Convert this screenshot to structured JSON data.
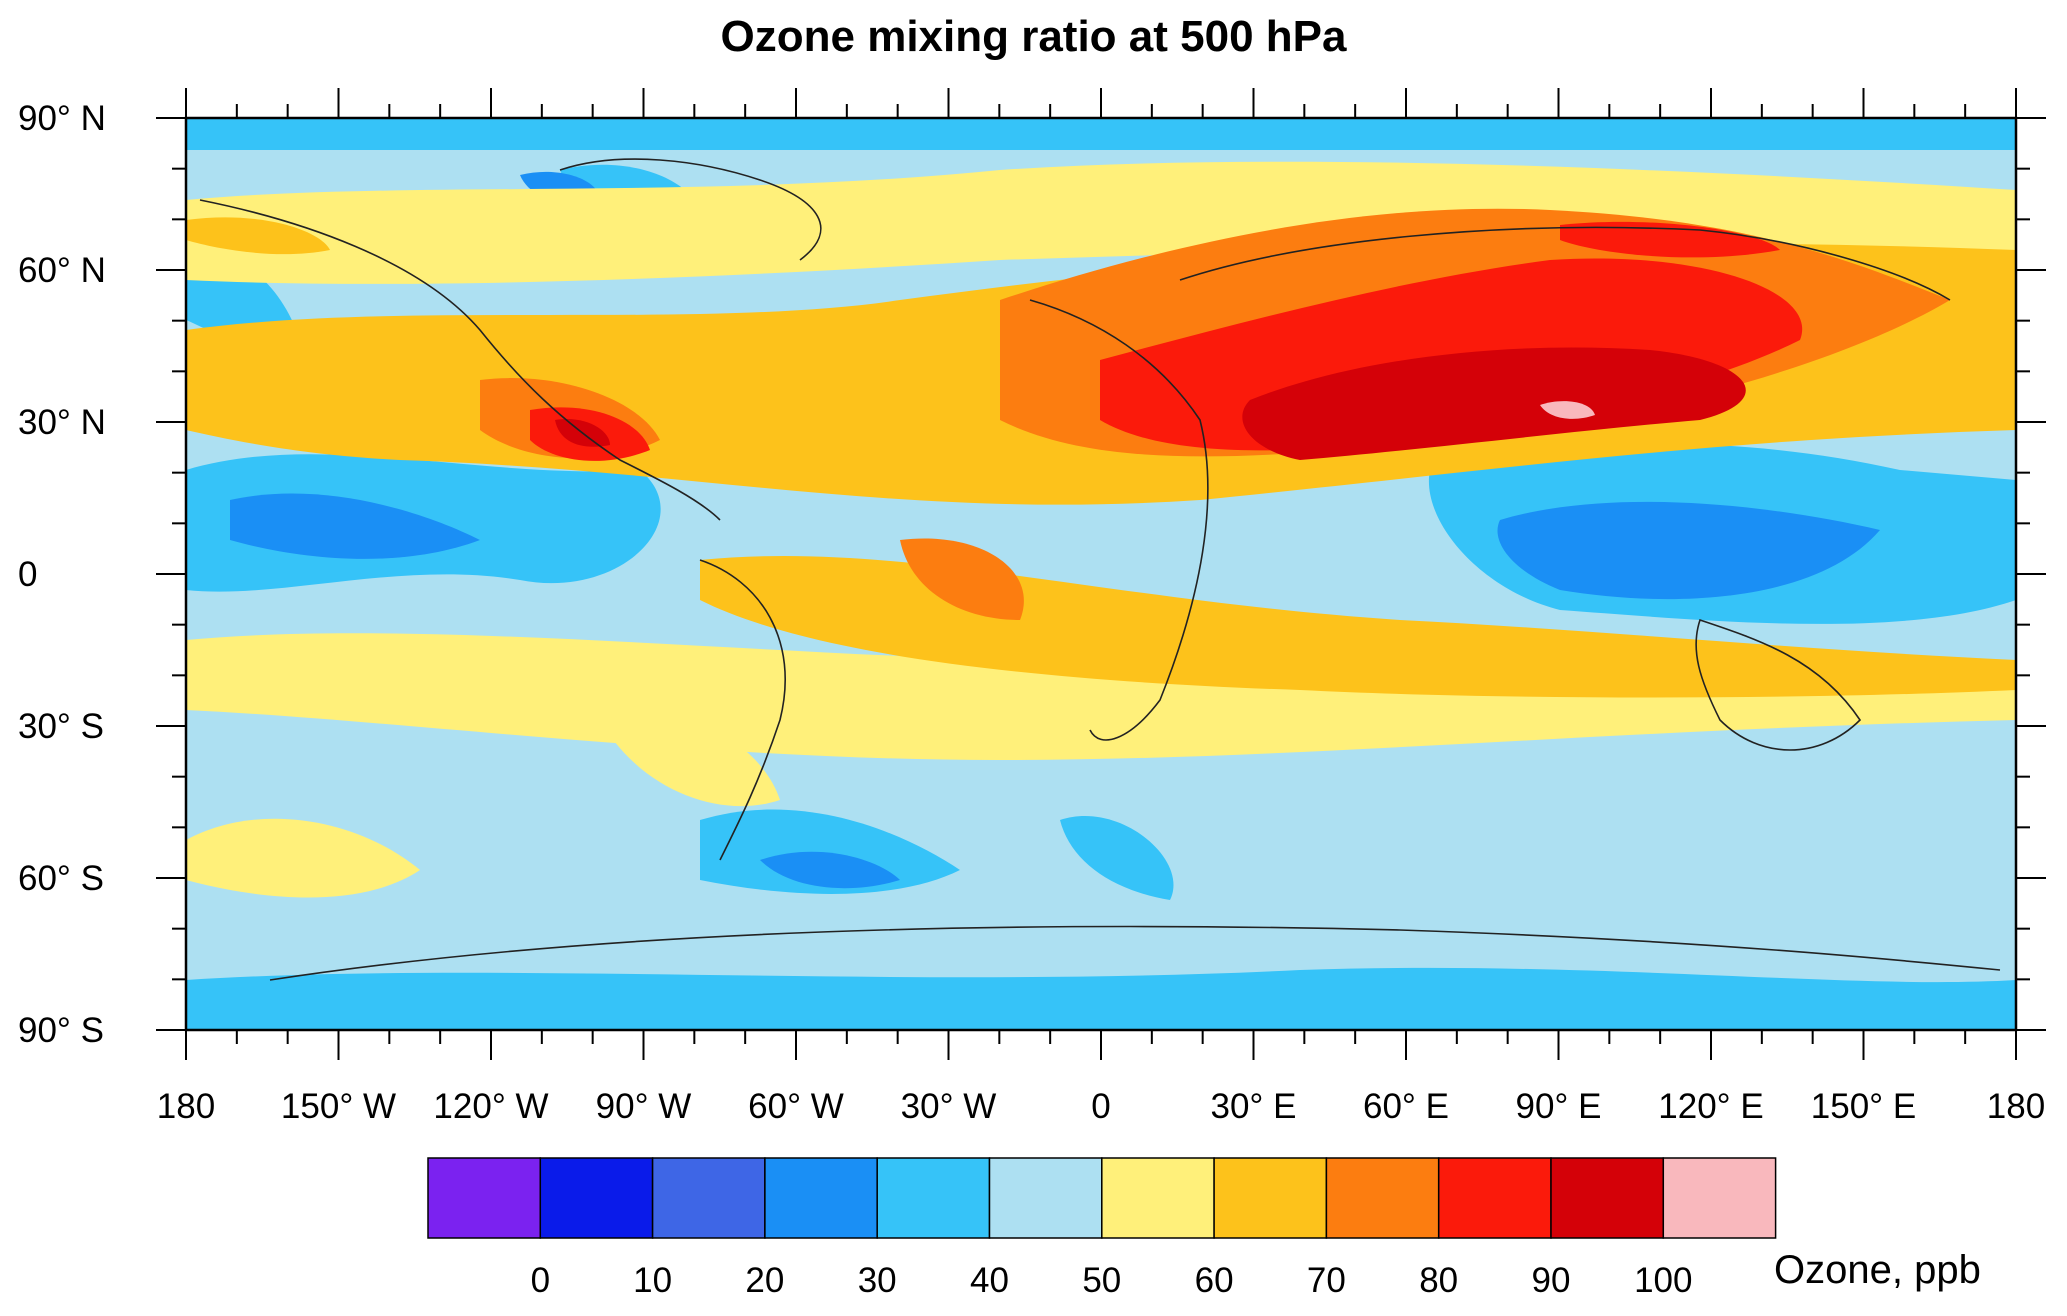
{
  "title": "Ozone mixing ratio at 500 hPa",
  "axes": {
    "lat_labels": [
      "90° N",
      "60° N",
      "30° N",
      "0",
      "30° S",
      "60° S",
      "90° S"
    ],
    "lat_values": [
      90,
      60,
      30,
      0,
      -30,
      -60,
      -90
    ],
    "lon_labels": [
      "180",
      "150° W",
      "120° W",
      "90° W",
      "60° W",
      "30° W",
      "0",
      "30° E",
      "60° E",
      "90° E",
      "120° E",
      "150° E",
      "180"
    ],
    "lon_values": [
      -180,
      -150,
      -120,
      -90,
      -60,
      -30,
      0,
      30,
      60,
      90,
      120,
      150,
      180
    ],
    "lon_range": [
      -180,
      180
    ],
    "lat_range": [
      -90,
      90
    ]
  },
  "colorbar": {
    "title": "Ozone, ppb",
    "tick_labels": [
      "0",
      "10",
      "20",
      "30",
      "40",
      "50",
      "60",
      "70",
      "80",
      "90",
      "100"
    ],
    "colors": [
      "#7b22f0",
      "#0a1bea",
      "#3e66e6",
      "#1a8ff5",
      "#36c3f8",
      "#ade0f2",
      "#fff07a",
      "#fdc21b",
      "#fc7d10",
      "#fb1a0b",
      "#d40108",
      "#f9b8bd"
    ]
  },
  "map_background": "#ade0f2"
}
